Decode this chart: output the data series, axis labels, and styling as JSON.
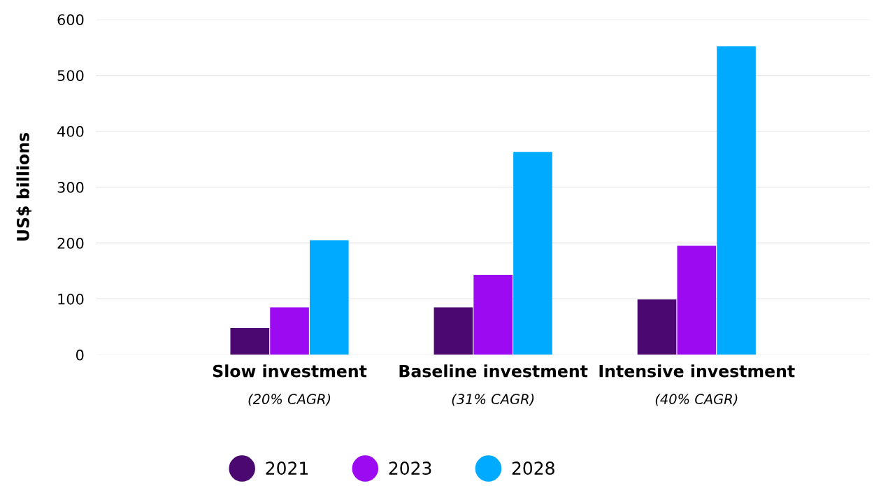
{
  "chart_data": {
    "type": "bar",
    "ylabel": "US$ billions",
    "categories": [
      "Slow investment",
      "Baseline investment",
      "Intensive investment"
    ],
    "series": [
      {
        "name": "2021",
        "color": "#4a0870",
        "values": [
          48,
          85,
          99
        ]
      },
      {
        "name": "2023",
        "color": "#9b0af0",
        "values": [
          85,
          143,
          195
        ]
      },
      {
        "name": "2028",
        "color": "#00aaff",
        "values": [
          205,
          363,
          552
        ]
      }
    ],
    "ylim": [
      0,
      600
    ],
    "yticks": [
      0,
      100,
      200,
      300,
      400,
      500,
      600
    ],
    "grid": "y",
    "legend": "bottom",
    "annotations": [
      "(20% CAGR)",
      "(31% CAGR)",
      "(40% CAGR)"
    ]
  }
}
